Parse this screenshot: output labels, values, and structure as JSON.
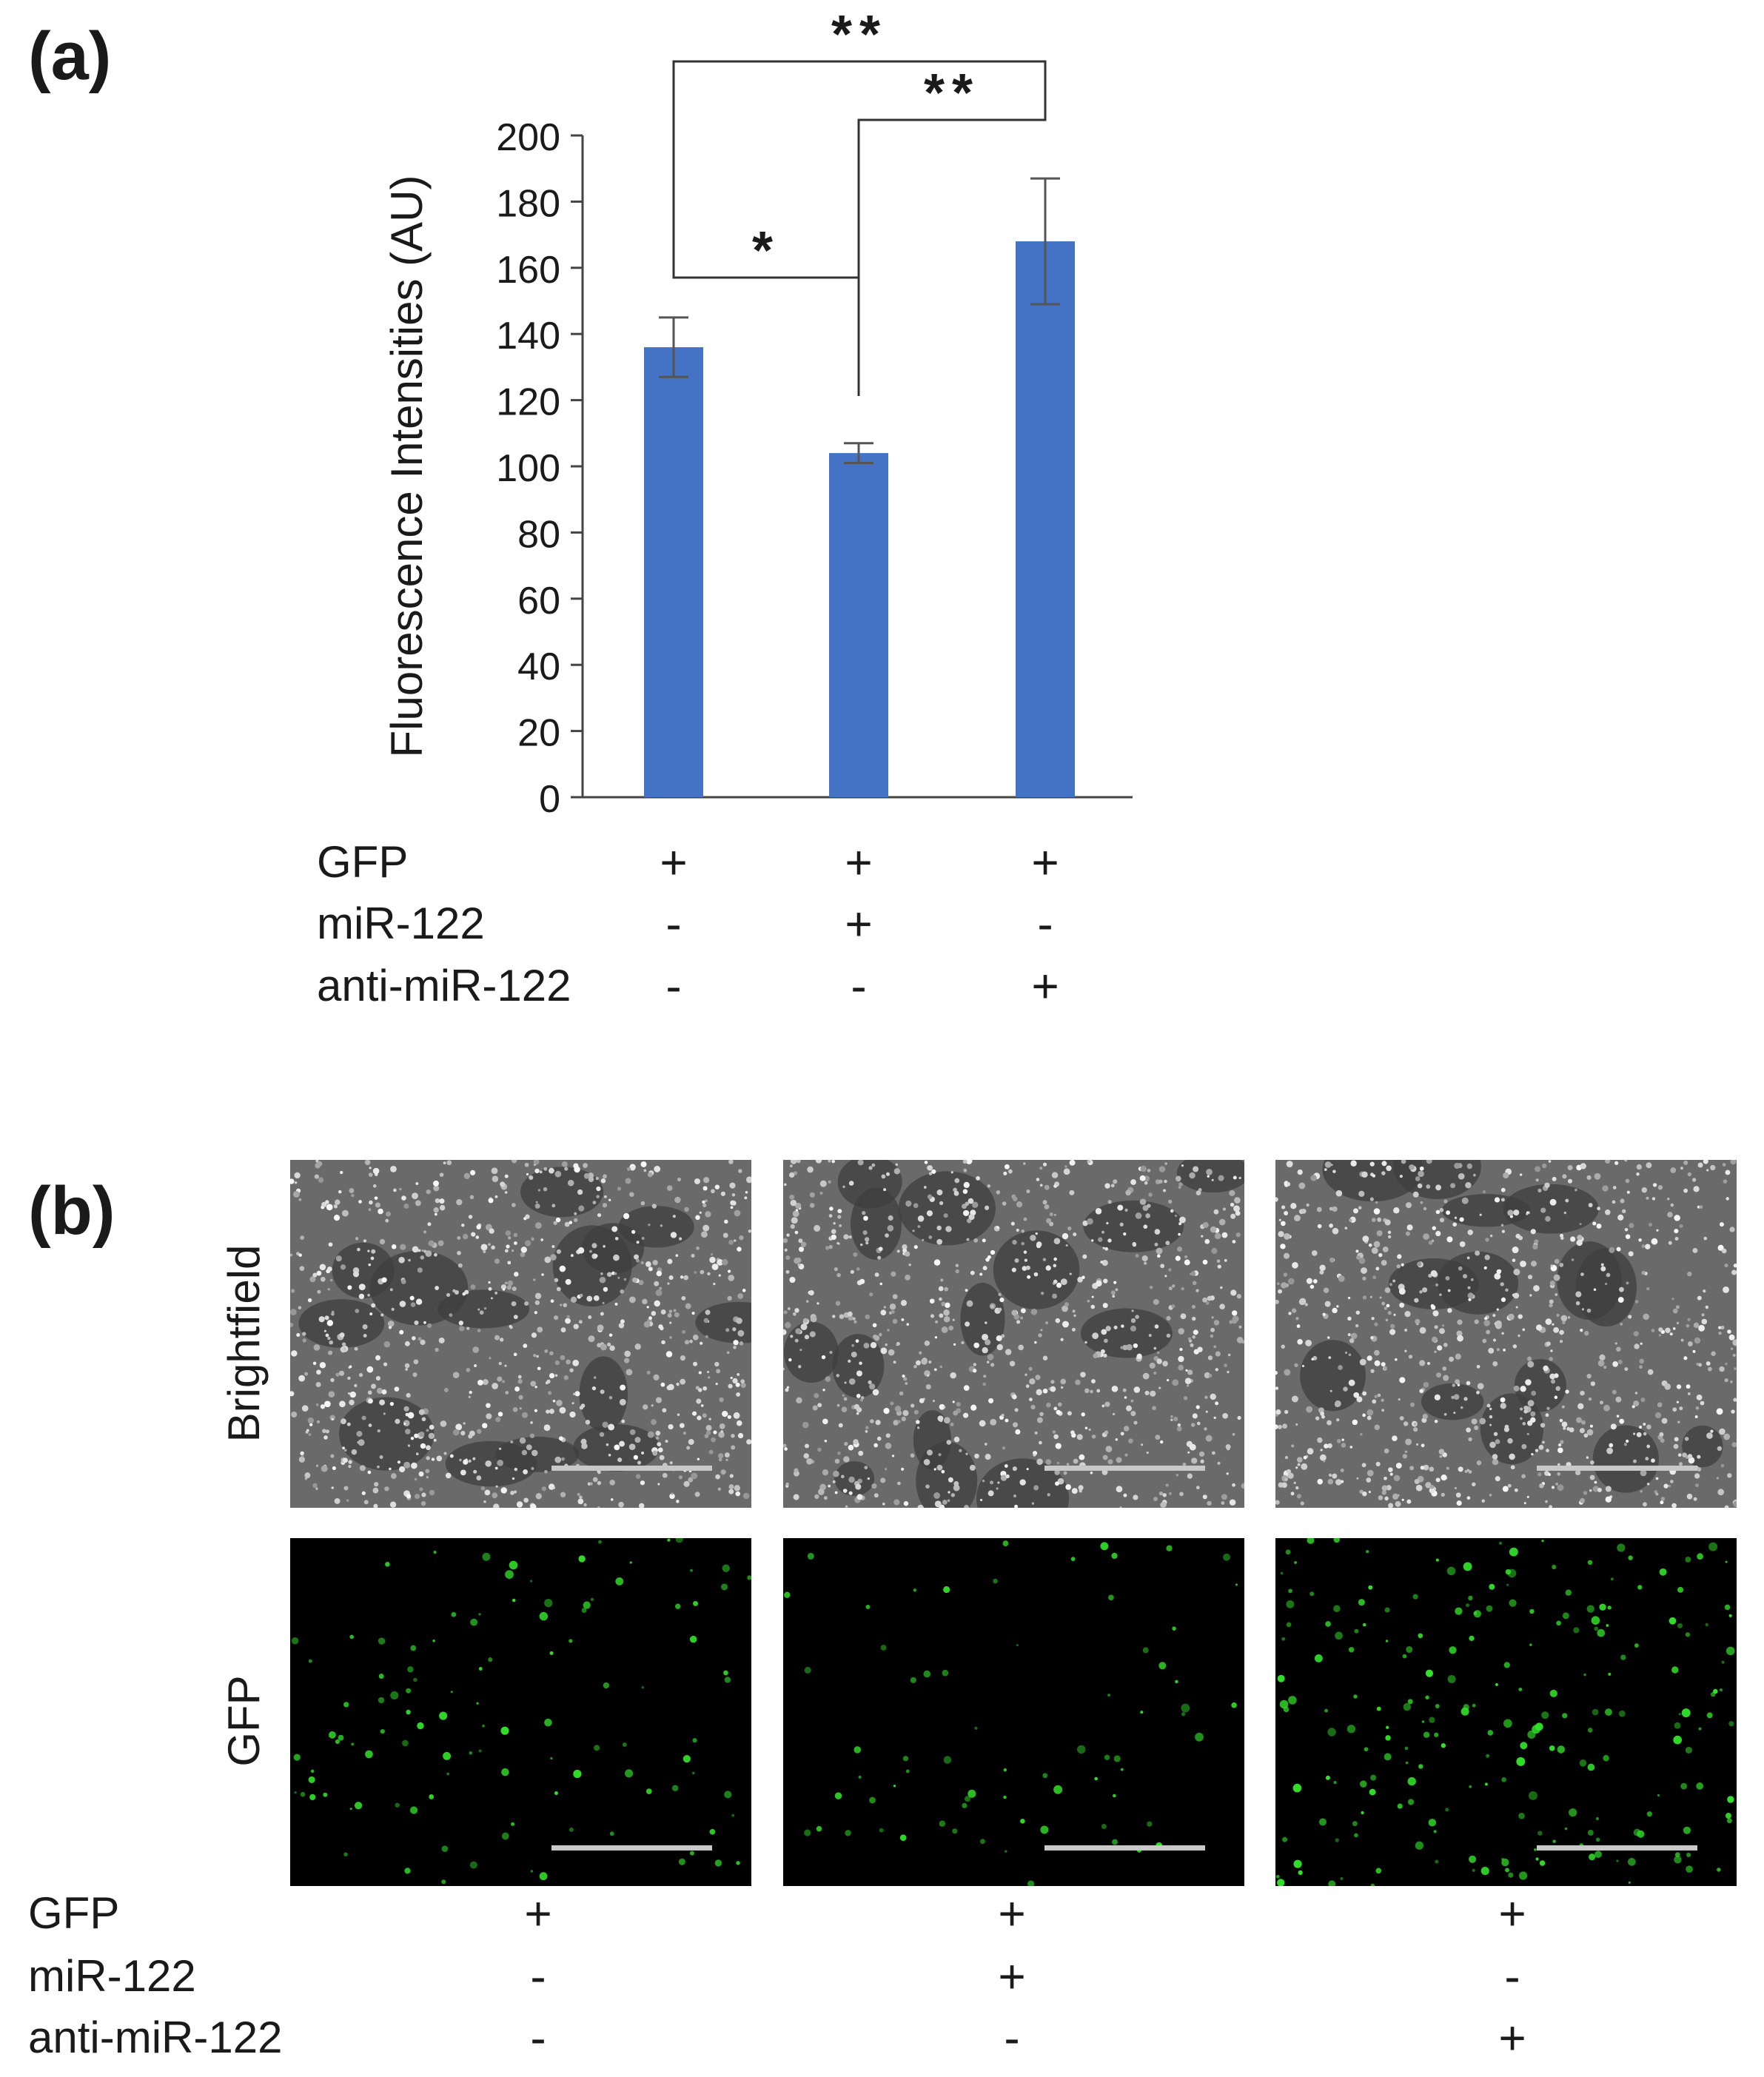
{
  "panel_a": {
    "label": "(a)"
  },
  "panel_b": {
    "label": "(b)"
  },
  "chart_data": {
    "type": "bar",
    "categories": [
      "1",
      "2",
      "3"
    ],
    "values": [
      136,
      104,
      168
    ],
    "errors": [
      9,
      3,
      19
    ],
    "ylabel": "Fluorescence Intensities (AU)",
    "xlabel": "",
    "ylim": [
      0,
      200
    ],
    "yticks": [
      0,
      20,
      40,
      60,
      80,
      100,
      120,
      140,
      160,
      180,
      200
    ],
    "bar_color": "#4472c4",
    "grid": false,
    "significance": [
      {
        "from": 1,
        "to": 2,
        "label": "*"
      },
      {
        "from": 2,
        "to": 3,
        "label": "**"
      },
      {
        "from": 1,
        "to": 3,
        "label": "**"
      }
    ]
  },
  "conditions": {
    "rows": [
      {
        "name": "GFP",
        "marks": [
          "+",
          "+",
          "+"
        ]
      },
      {
        "name": "miR-122",
        "marks": [
          "-",
          "+",
          "-"
        ]
      },
      {
        "name": "anti-miR-122",
        "marks": [
          "-",
          "-",
          "+"
        ]
      }
    ]
  },
  "micrographs": {
    "row_labels": [
      "Brightfield",
      "GFP"
    ],
    "colors": {
      "brightfield_bg": "#6a6a6a",
      "gfp_bg": "#000000",
      "gfp_cell": "#33e02a",
      "scale_bar": "#c8c8c8"
    }
  }
}
